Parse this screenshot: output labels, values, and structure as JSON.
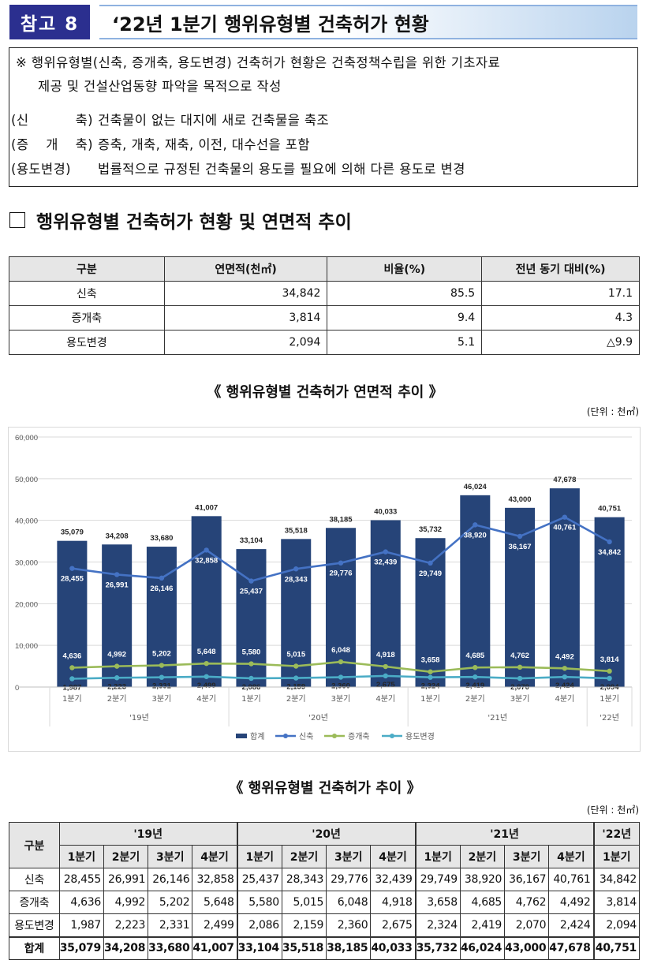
{
  "header": {
    "badge": "참고 8",
    "title": "‘22년 1분기 행위유형별 건축허가 현황"
  },
  "note": {
    "line1": "※ 행위유형별(신축, 증개축, 용도변경) 건축허가 현황은 건축정책수립을 위한 기초자료",
    "line2": "제공 및 건설산업동향 파악을 목적으로 작성",
    "definitions": [
      {
        "label_open": "(신",
        "label_close": "축)",
        "desc": "건축물이 없는 대지에 새로 건축물을 축조"
      },
      {
        "label_open": "(증",
        "label_mid": "개",
        "label_close": "축)",
        "desc": "증축, 개축, 재축, 이전, 대수선을 포함"
      },
      {
        "label_open": "(용도변경)",
        "desc": "법률적으로 규정된 건축물의 용도를 필요에 의해 다른 용도로 변경"
      }
    ]
  },
  "section_heading": "행위유형별 건축허가 현황 및 연면적 추이",
  "summary_table": {
    "headers": [
      "구분",
      "연면적(천㎡)",
      "비율(%)",
      "전년 동기 대비(%)"
    ],
    "rows": [
      [
        "신축",
        "34,842",
        "85.5",
        "17.1"
      ],
      [
        "증개축",
        "3,814",
        "9.4",
        "4.3"
      ],
      [
        "용도변경",
        "2,094",
        "5.1",
        "△9.9"
      ]
    ]
  },
  "chart_section": {
    "title": "《 행위유형별 건축허가 연면적 추이 》",
    "unit": "(단위 : 천㎡)"
  },
  "chart_data": {
    "type": "bar",
    "categories": [
      "1분기",
      "2분기",
      "3분기",
      "4분기",
      "1분기",
      "2분기",
      "3분기",
      "4분기",
      "1분기",
      "2분기",
      "3분기",
      "4분기",
      "1분기"
    ],
    "groups": [
      {
        "label": "'19년",
        "span": 4
      },
      {
        "label": "'20년",
        "span": 4
      },
      {
        "label": "'21년",
        "span": 4
      },
      {
        "label": "'22년",
        "span": 1
      }
    ],
    "series": [
      {
        "name": "합계",
        "kind": "bar",
        "color": "#264478",
        "values": [
          35079,
          34208,
          33680,
          41007,
          33104,
          35518,
          38185,
          40033,
          35732,
          46024,
          43000,
          47678,
          40751
        ]
      },
      {
        "name": "신축",
        "kind": "line",
        "color": "#4472c4",
        "values": [
          28455,
          26991,
          26146,
          32858,
          25437,
          28343,
          29776,
          32439,
          29749,
          38920,
          36167,
          40761,
          34842
        ]
      },
      {
        "name": "증개축",
        "kind": "line",
        "color": "#9bbb59",
        "values": [
          4636,
          4992,
          5202,
          5648,
          5580,
          5015,
          6048,
          4918,
          3658,
          4685,
          4762,
          4492,
          3814
        ]
      },
      {
        "name": "용도변경",
        "kind": "line",
        "color": "#4bacc6",
        "values": [
          1987,
          2223,
          2331,
          2499,
          2086,
          2159,
          2360,
          2675,
          2324,
          2419,
          2070,
          2424,
          2094
        ]
      }
    ],
    "yticks": [
      "0",
      "10,000",
      "20,000",
      "30,000",
      "40,000",
      "50,000",
      "60,000"
    ],
    "ylim": [
      0,
      60000
    ],
    "grid": true,
    "legend": "bottom"
  },
  "quarterly_section": {
    "title": "《 행위유형별 건축허가 추이 》",
    "unit": "(단위 : 천㎡)"
  },
  "quarterly_table": {
    "corner": "구분",
    "years": [
      "'19년",
      "'20년",
      "'21년",
      "'22년"
    ],
    "quarters": [
      "1분기",
      "2분기",
      "3분기",
      "4분기",
      "1분기",
      "2분기",
      "3분기",
      "4분기",
      "1분기",
      "2분기",
      "3분기",
      "4분기",
      "1분기"
    ],
    "rows": [
      {
        "label": "신축",
        "values": [
          "28,455",
          "26,991",
          "26,146",
          "32,858",
          "25,437",
          "28,343",
          "29,776",
          "32,439",
          "29,749",
          "38,920",
          "36,167",
          "40,761",
          "34,842"
        ]
      },
      {
        "label": "증개축",
        "values": [
          "4,636",
          "4,992",
          "5,202",
          "5,648",
          "5,580",
          "5,015",
          "6,048",
          "4,918",
          "3,658",
          "4,685",
          "4,762",
          "4,492",
          "3,814"
        ]
      },
      {
        "label": "용도변경",
        "values": [
          "1,987",
          "2,223",
          "2,331",
          "2,499",
          "2,086",
          "2,159",
          "2,360",
          "2,675",
          "2,324",
          "2,419",
          "2,070",
          "2,424",
          "2,094"
        ]
      },
      {
        "label": "합계",
        "values": [
          "35,079",
          "34,208",
          "33,680",
          "41,007",
          "33,104",
          "35,518",
          "38,185",
          "40,033",
          "35,732",
          "46,024",
          "43,000",
          "47,678",
          "40,751"
        ]
      }
    ]
  }
}
